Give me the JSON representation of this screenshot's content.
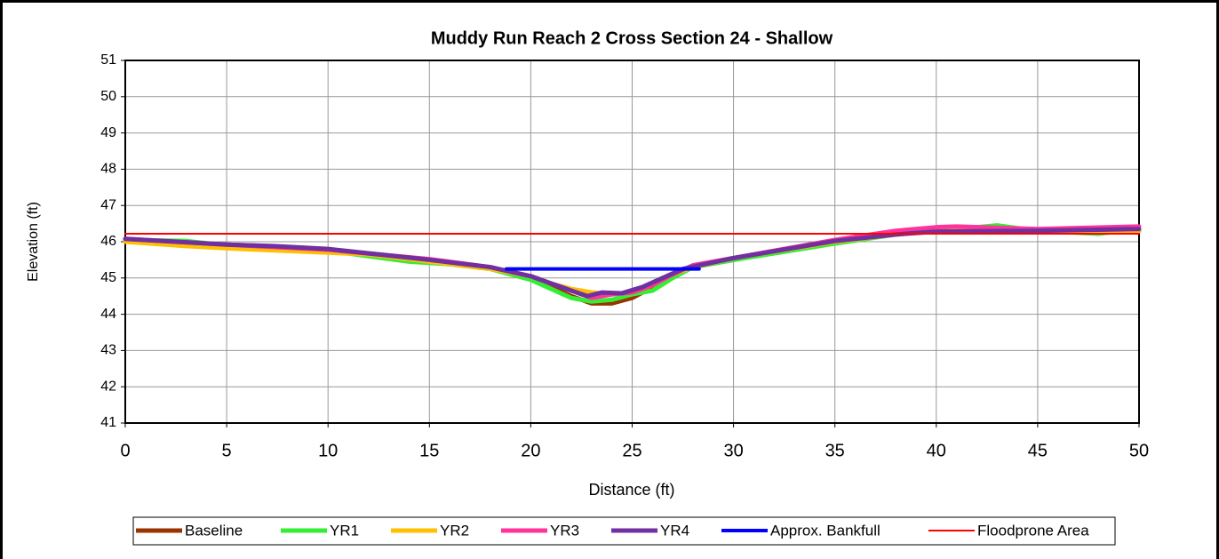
{
  "chart_data": {
    "type": "line",
    "title": "Muddy Run Reach 2 Cross Section 24 - Shallow",
    "xlabel": "Distance (ft)",
    "ylabel": "Elevation (ft)",
    "xlim": [
      0,
      50
    ],
    "xticks": [
      0,
      5,
      10,
      15,
      20,
      25,
      30,
      35,
      40,
      45,
      50
    ],
    "ylim": [
      41,
      51
    ],
    "yticks": [
      41,
      42,
      43,
      44,
      45,
      46,
      47,
      48,
      49,
      50,
      51
    ],
    "grid": true,
    "legend": "bottom",
    "series": [
      {
        "name": "Baseline",
        "color": "#993300",
        "x": [
          0,
          3,
          5,
          7,
          10,
          12,
          15,
          18,
          20,
          21,
          22,
          23,
          24,
          25,
          26,
          27,
          28,
          30,
          35,
          38,
          40,
          45,
          50
        ],
        "values": [
          46.05,
          45.98,
          45.92,
          45.88,
          45.75,
          45.65,
          45.45,
          45.3,
          45.0,
          44.75,
          44.5,
          44.3,
          44.3,
          44.45,
          44.75,
          45.1,
          45.3,
          45.5,
          46.0,
          46.2,
          46.3,
          46.3,
          46.3
        ]
      },
      {
        "name": "YR1",
        "color": "#33ee33",
        "x": [
          0,
          3,
          5,
          7,
          10,
          12,
          14,
          16,
          18,
          20,
          21,
          22,
          23,
          24,
          25,
          26,
          27,
          28,
          30,
          35,
          38,
          40,
          43,
          45,
          48,
          50
        ],
        "values": [
          46.05,
          46.02,
          45.9,
          45.85,
          45.75,
          45.6,
          45.45,
          45.38,
          45.25,
          44.95,
          44.7,
          44.45,
          44.35,
          44.4,
          44.55,
          44.65,
          45.0,
          45.3,
          45.5,
          45.95,
          46.2,
          46.3,
          46.45,
          46.3,
          46.22,
          46.35
        ]
      },
      {
        "name": "YR2",
        "color": "#ffc000",
        "x": [
          0,
          3,
          5,
          7,
          10,
          12,
          15,
          18,
          20,
          21,
          22,
          23,
          24,
          25,
          26,
          27,
          28,
          30,
          35,
          38,
          40,
          45,
          50
        ],
        "values": [
          46.0,
          45.88,
          45.82,
          45.77,
          45.7,
          45.65,
          45.45,
          45.25,
          45.05,
          44.85,
          44.7,
          44.6,
          44.55,
          44.6,
          44.8,
          45.1,
          45.3,
          45.55,
          46.0,
          46.2,
          46.3,
          46.3,
          46.3
        ]
      },
      {
        "name": "YR3",
        "color": "#ff3399",
        "x": [
          0,
          5,
          10,
          15,
          18,
          20,
          21,
          22,
          23,
          24,
          25,
          26,
          27,
          28,
          30,
          35,
          38,
          40,
          41,
          45,
          50
        ],
        "values": [
          46.08,
          45.92,
          45.78,
          45.52,
          45.3,
          45.05,
          44.85,
          44.65,
          44.45,
          44.55,
          44.6,
          44.8,
          45.1,
          45.35,
          45.55,
          46.05,
          46.3,
          46.4,
          46.42,
          46.35,
          46.42
        ]
      },
      {
        "name": "YR4",
        "color": "#7030a0",
        "x": [
          0,
          5,
          7.3,
          10,
          15,
          18,
          20,
          21,
          22,
          22.8,
          23.5,
          24.5,
          25.5,
          26.5,
          27.5,
          30,
          35,
          38,
          40,
          45,
          50
        ],
        "values": [
          46.08,
          45.92,
          45.88,
          45.8,
          45.5,
          45.3,
          45.05,
          44.85,
          44.65,
          44.5,
          44.6,
          44.58,
          44.75,
          45.0,
          45.25,
          45.55,
          46.02,
          46.2,
          46.28,
          46.3,
          46.35
        ]
      },
      {
        "name": "Approx. Bankfull",
        "color": "#0000ff",
        "x": [
          18.8,
          28.3
        ],
        "values": [
          45.25,
          45.25
        ]
      },
      {
        "name": "Floodprone Area",
        "color": "#ff0000",
        "x": [
          0,
          50
        ],
        "values": [
          46.22,
          46.22
        ]
      }
    ]
  }
}
